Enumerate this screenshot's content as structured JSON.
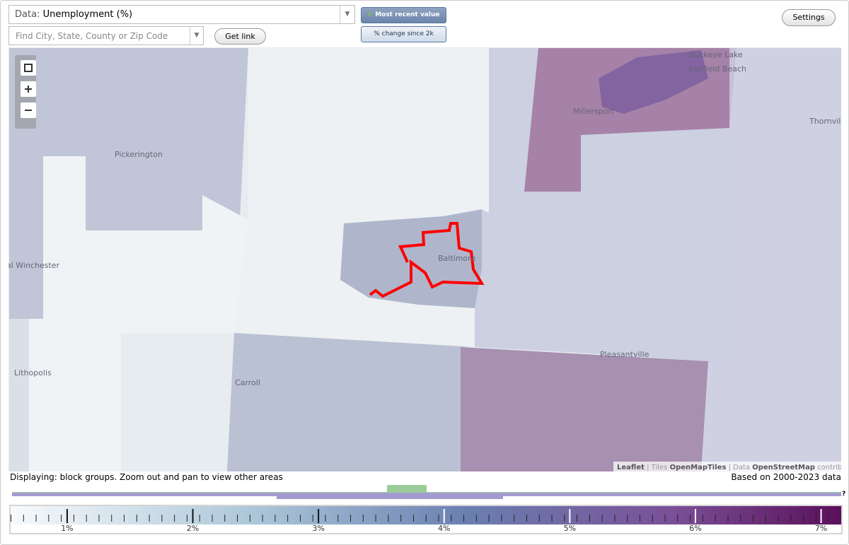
{
  "header": {
    "data_label": "Data:",
    "data_value": "Unemployment (%)",
    "search_placeholder": "Find City, State, County or Zip Code",
    "get_link": "Get link",
    "most_recent": "Most recent value",
    "pct_change": "% change since 2k",
    "settings": "Settings"
  },
  "map": {
    "places": [
      "Pickerington",
      "nal Winchester",
      "Baltimore",
      "Millersport",
      "Buckeye Lake",
      "Fairfield Beach",
      "Thornville",
      "Lithopolis",
      "Carroll",
      "Pleasantville"
    ],
    "attribution": {
      "leaflet": "Leaflet",
      "sep1": "|",
      "tiles": "Tiles",
      "tiles_name": "OpenMapTiles",
      "sep2": "|",
      "data": "Data",
      "data_name": "OpenStreetMap",
      "contributors": "contributors"
    }
  },
  "footer": {
    "displaying": "Displaying: block groups. Zoom out and pan to view other areas",
    "based_on": "Based on 2000-2023 data",
    "help": "?"
  },
  "legend": {
    "ticks": [
      {
        "value": 1,
        "label": "1%"
      },
      {
        "value": 2,
        "label": "2%"
      },
      {
        "value": 3,
        "label": "3%"
      },
      {
        "value": 4,
        "label": "4%"
      },
      {
        "value": 5,
        "label": "5%"
      },
      {
        "value": 6,
        "label": "6%"
      },
      {
        "value": 7,
        "label": "7%"
      }
    ],
    "range": [
      0.55,
      7.16
    ]
  }
}
